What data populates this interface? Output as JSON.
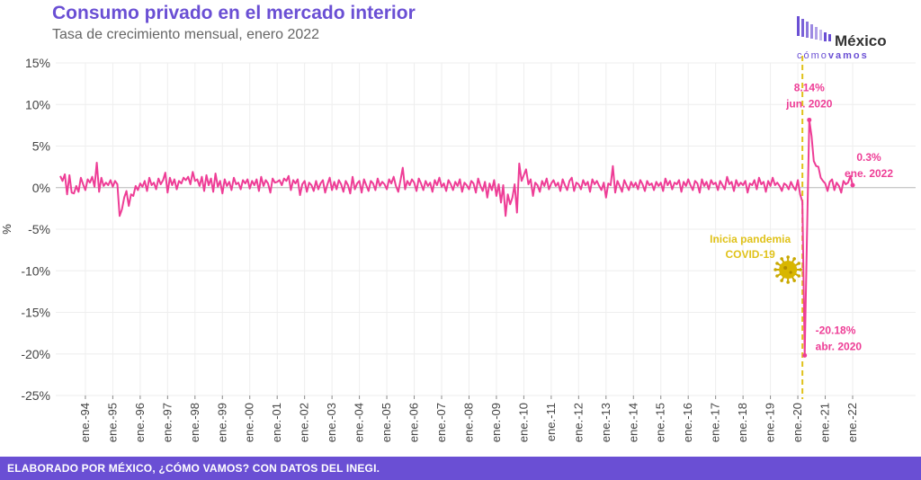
{
  "header": {
    "title": "Consumo privado en el mercado interior",
    "subtitle": "Tasa de crecimiento mensual, enero 2022"
  },
  "logo": {
    "word": "México",
    "sub_light": "cómo",
    "sub_bold": "vamos"
  },
  "footer": {
    "text": "ELABORADO POR MÉXICO, ¿CÓMO VAMOS? CON DATOS DEL INEGI."
  },
  "colors": {
    "line": "#ee3d96",
    "accent": "#6a4fd4",
    "pandemic": "#e0c21a",
    "grid": "#eeeeee"
  },
  "chart_data": {
    "type": "line",
    "title": "Consumo privado en el mercado interior",
    "subtitle": "Tasa de crecimiento mensual, enero 2022",
    "xlabel": "",
    "ylabel": "%",
    "ylim": [
      -25,
      15
    ],
    "yticks": [
      15,
      10,
      5,
      0,
      -5,
      -10,
      -15,
      -20,
      -25
    ],
    "ytick_labels": [
      "15%",
      "10%",
      "5%",
      "0%",
      "-5%",
      "-10%",
      "-15%",
      "-20%",
      "-25%"
    ],
    "x_start": "1993-02",
    "x_end": "2022-01",
    "xtick_labels": [
      "ene.-94",
      "ene.-95",
      "ene.-96",
      "ene.-97",
      "ene.-98",
      "ene.-99",
      "ene.-00",
      "ene.-01",
      "ene.-02",
      "ene.-03",
      "ene.-04",
      "ene.-05",
      "ene.-06",
      "ene.-07",
      "ene.-08",
      "ene.-09",
      "ene.-10",
      "ene.-11",
      "ene.-12",
      "ene.-13",
      "ene.-14",
      "ene.-15",
      "ene.-16",
      "ene.-17",
      "ene.-18",
      "ene.-19",
      "ene.-20",
      "ene.-21",
      "ene.-22"
    ],
    "grid": true,
    "series": [
      {
        "values": [
          1.4,
          0.8,
          1.6,
          -0.8,
          1.5,
          -0.6,
          -0.7,
          0.2,
          -0.5,
          1.2,
          0.4,
          -0.3,
          1.0,
          0.6,
          1.3,
          0.1,
          3.0,
          -0.5,
          1.2,
          0.2,
          0.6,
          0.3,
          0.9,
          0.1,
          0.8,
          0.4,
          -3.4,
          -2.6,
          -1.2,
          -0.4,
          -2.2,
          -0.8,
          -1.0,
          0.2,
          -0.3,
          0.5,
          0.1,
          0.8,
          -0.4,
          1.2,
          0.3,
          0.6,
          -0.2,
          1.1,
          0.4,
          0.9,
          1.8,
          -0.6,
          1.2,
          0.3,
          1.0,
          -0.2,
          0.8,
          0.5,
          1.2,
          0.9,
          1.3,
          0.4,
          1.9,
          0.8,
          1.0,
          0.2,
          1.3,
          -0.4,
          1.5,
          0.3,
          1.1,
          -0.5,
          1.7,
          0.1,
          0.8,
          -0.7,
          1.0,
          0.2,
          0.7,
          -0.3,
          1.2,
          0.4,
          0.6,
          -0.2,
          0.9,
          0.5,
          1.0,
          -0.1,
          0.8,
          0.3,
          1.0,
          -0.4,
          1.3,
          0.2,
          0.9,
          0.5,
          -0.6,
          1.1,
          0.6,
          0.7,
          0.9,
          0.3,
          1.1,
          0.8,
          1.4,
          -0.3,
          0.9,
          0.5,
          1.0,
          -0.9,
          0.4,
          0.8,
          -0.5,
          0.6,
          0.3,
          -0.4,
          0.8,
          -0.2,
          0.5,
          0.9,
          -0.6,
          0.4,
          1.2,
          -0.3,
          0.7,
          -0.2,
          0.9,
          0.4,
          -0.5,
          0.8,
          0.3,
          -0.7,
          1.3,
          -0.2,
          0.5,
          0.8,
          -0.6,
          1.0,
          0.3,
          -0.4,
          0.8,
          0.5,
          -0.3,
          1.1,
          0.2,
          0.7,
          0.4,
          -0.2,
          1.0,
          0.5,
          1.3,
          0.2,
          -0.5,
          0.9,
          2.4,
          -0.2,
          0.8,
          0.3,
          1.0,
          0.6,
          -0.4,
          1.1,
          0.5,
          -0.3,
          0.8,
          0.2,
          0.6,
          -0.5,
          0.9,
          0.3,
          1.2,
          0.1,
          0.5,
          -0.4,
          0.9,
          0.4,
          -0.3,
          0.7,
          0.2,
          1.0,
          -0.5,
          0.6,
          0.3,
          -0.2,
          0.8,
          0.5,
          -0.6,
          1.1,
          0.2,
          -0.4,
          0.7,
          -1.2,
          0.5,
          -0.3,
          0.9,
          -1.0,
          0.4,
          -1.8,
          0.3,
          -3.4,
          -0.8,
          -2.0,
          -1.2,
          0.4,
          -3.0,
          2.9,
          0.8,
          1.5,
          2.2,
          0.4,
          1.0,
          -1.0,
          0.6,
          0.3,
          -0.5,
          0.8,
          0.2,
          1.1,
          -0.2,
          0.5,
          0.9,
          0.2,
          0.6,
          -0.4,
          1.0,
          0.3,
          -0.3,
          0.8,
          1.2,
          -0.4,
          0.6,
          0.4,
          -0.2,
          0.9,
          0.3,
          0.7,
          -0.5,
          1.0,
          0.4,
          0.8,
          0.2,
          -0.3,
          0.6,
          -1.2,
          0.5,
          0.3,
          2.6,
          -0.6,
          0.8,
          0.2,
          -0.5,
          0.9,
          0.3,
          -0.3,
          0.7,
          0.1,
          0.6,
          -0.2,
          0.9,
          0.4,
          -0.4,
          0.8,
          0.3,
          0.5,
          -0.3,
          0.7,
          0.2,
          0.6,
          -0.4,
          1.1,
          0.3,
          0.8,
          -0.2,
          0.6,
          0.4,
          0.9,
          -0.5,
          0.7,
          0.2,
          1.0,
          0.3,
          -0.3,
          0.8,
          0.5,
          -0.6,
          1.0,
          0.2,
          0.7,
          -0.2,
          0.9,
          0.4,
          0.6,
          -0.3,
          0.8,
          0.3,
          -0.2,
          1.3,
          0.4,
          0.7,
          -0.4,
          0.9,
          0.2,
          0.6,
          0.3,
          0.8,
          -0.6,
          0.5,
          0.3,
          0.9,
          -0.2,
          1.2,
          0.4,
          0.7,
          -0.5,
          0.8,
          0.2,
          1.2,
          0.3,
          0.6,
          0.2,
          -0.4,
          0.5,
          0.3,
          -0.2,
          0.7,
          0.1,
          -0.3,
          0.9,
          -0.8,
          -1.7,
          -20.18,
          -6.0,
          8.14,
          6.2,
          3.2,
          2.6,
          2.5,
          1.2,
          0.8,
          0.5,
          -0.4,
          0.7,
          1.0,
          -0.3,
          0.6,
          0.2,
          -0.6,
          0.8,
          0.4,
          0.6,
          1.4,
          0.3
        ]
      }
    ],
    "annotations": [
      {
        "date": "2020-06",
        "value": 8.14,
        "label_value": "8.14%",
        "label_date": "jun. 2020"
      },
      {
        "date": "2020-04",
        "value": -20.18,
        "label_value": "-20.18%",
        "label_date": "abr. 2020"
      },
      {
        "date": "2022-01",
        "value": 0.3,
        "label_value": "0.3%",
        "label_date": "ene. 2022"
      }
    ],
    "event": {
      "date": "2020-03",
      "label_line1": "Inicia pandemia",
      "label_line2": "COVID-19",
      "icon": "virus-icon"
    }
  }
}
